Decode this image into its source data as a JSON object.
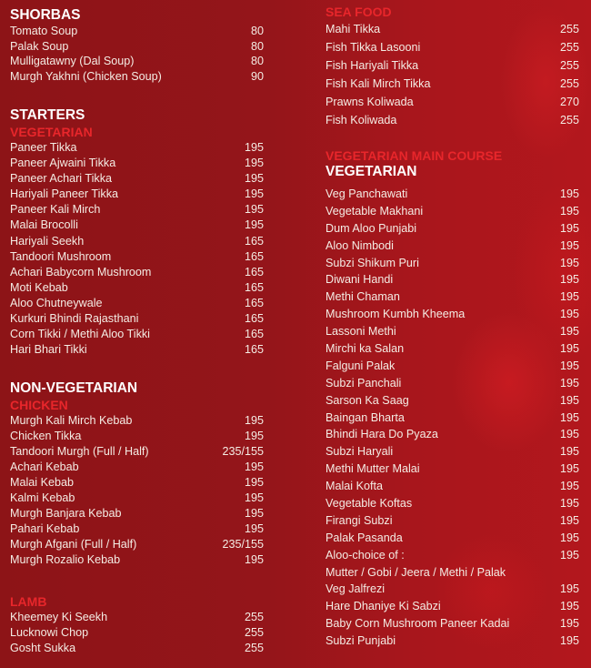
{
  "left": [
    {
      "heading": "SHORBAS",
      "items": [
        {
          "name": "Tomato Soup",
          "price": "80"
        },
        {
          "name": "Palak Soup",
          "price": "80"
        },
        {
          "name": "Mulligatawny (Dal Soup)",
          "price": "80"
        },
        {
          "name": "Murgh Yakhni (Chicken Soup)",
          "price": "90"
        }
      ]
    },
    {
      "heading": "STARTERS",
      "subheading": "VEGETARIAN",
      "items": [
        {
          "name": "Paneer Tikka",
          "price": "195"
        },
        {
          "name": "Paneer Ajwaini Tikka",
          "price": "195"
        },
        {
          "name": "Paneer Achari Tikka",
          "price": "195"
        },
        {
          "name": "Hariyali Paneer Tikka",
          "price": "195"
        },
        {
          "name": "Paneer Kali Mirch",
          "price": "195"
        },
        {
          "name": "Malai Brocolli",
          "price": "195"
        },
        {
          "name": "Hariyali Seekh",
          "price": "165"
        },
        {
          "name": "Tandoori Mushroom",
          "price": "165"
        },
        {
          "name": "Achari Babycorn Mushroom",
          "price": "165"
        },
        {
          "name": "Moti Kebab",
          "price": "165"
        },
        {
          "name": "Aloo Chutneywale",
          "price": "165"
        },
        {
          "name": "Kurkuri Bhindi Rajasthani",
          "price": "165"
        },
        {
          "name": "Corn Tikki / Methi Aloo Tikki",
          "price": "165"
        },
        {
          "name": "Hari Bhari Tikki",
          "price": "165"
        }
      ]
    },
    {
      "heading": "NON-VEGETARIAN",
      "subheading": "CHICKEN",
      "items": [
        {
          "name": "Murgh Kali Mirch Kebab",
          "price": "195"
        },
        {
          "name": "Chicken Tikka",
          "price": "195"
        },
        {
          "name": "Tandoori Murgh (Full / Half)",
          "price": "235/155"
        },
        {
          "name": "Achari Kebab",
          "price": "195"
        },
        {
          "name": "Malai Kebab",
          "price": "195"
        },
        {
          "name": "Kalmi Kebab",
          "price": "195"
        },
        {
          "name": "Murgh Banjara Kebab",
          "price": "195"
        },
        {
          "name": "Pahari Kebab",
          "price": "195"
        },
        {
          "name": "Murgh Afgani (Full / Half)",
          "price": "235/155"
        },
        {
          "name": "Murgh Rozalio Kebab",
          "price": "195"
        }
      ]
    },
    {
      "subheading": "LAMB",
      "items": [
        {
          "name": "Kheemey Ki Seekh",
          "price": "255"
        },
        {
          "name": "Lucknowi Chop",
          "price": "255"
        },
        {
          "name": "Gosht Sukka",
          "price": "255"
        }
      ]
    }
  ],
  "right": [
    {
      "subheading": "SEA FOOD",
      "items": [
        {
          "name": "Mahi Tikka",
          "price": "255"
        },
        {
          "name": "Fish Tikka Lasooni",
          "price": "255"
        },
        {
          "name": "Fish Hariyali Tikka",
          "price": "255"
        },
        {
          "name": "Fish Kali Mirch Tikka",
          "price": "255"
        },
        {
          "name": "Prawns Koliwada",
          "price": "270"
        },
        {
          "name": "Fish Koliwada",
          "price": "255"
        }
      ]
    },
    {
      "subheading": "VEGETARIAN MAIN COURSE",
      "heading": "VEGETARIAN",
      "items": [
        {
          "name": "Veg Panchawati",
          "price": "195"
        },
        {
          "name": "Vegetable Makhani",
          "price": "195"
        },
        {
          "name": "Dum Aloo Punjabi",
          "price": "195"
        },
        {
          "name": "Aloo Nimbodi",
          "price": "195"
        },
        {
          "name": "Subzi Shikum Puri",
          "price": "195"
        },
        {
          "name": "Diwani Handi",
          "price": "195"
        },
        {
          "name": "Methi Chaman",
          "price": "195"
        },
        {
          "name": "Mushroom Kumbh Kheema",
          "price": "195"
        },
        {
          "name": "Lassoni Methi",
          "price": "195"
        },
        {
          "name": "Mirchi ka Salan",
          "price": "195"
        },
        {
          "name": "Falguni Palak",
          "price": "195"
        },
        {
          "name": "Subzi Panchali",
          "price": "195"
        },
        {
          "name": "Sarson Ka Saag",
          "price": "195"
        },
        {
          "name": "Baingan Bharta",
          "price": "195"
        },
        {
          "name": "Bhindi Hara Do Pyaza",
          "price": "195"
        },
        {
          "name": "Subzi Haryali",
          "price": "195"
        },
        {
          "name": "Methi Mutter Malai",
          "price": "195"
        },
        {
          "name": "Malai Kofta",
          "price": "195"
        },
        {
          "name": "Vegetable Koftas",
          "price": "195"
        },
        {
          "name": "Firangi Subzi",
          "price": "195"
        },
        {
          "name": "Palak Pasanda",
          "price": "195"
        },
        {
          "name": "Aloo-choice of :",
          "price": "195"
        },
        {
          "name": "Mutter / Gobi / Jeera / Methi / Palak",
          "price": ""
        },
        {
          "name": "Veg Jalfrezi",
          "price": "195"
        },
        {
          "name": "Hare Dhaniye Ki Sabzi",
          "price": "195"
        },
        {
          "name": "Baby Corn Mushroom Paneer Kadai",
          "price": "195"
        },
        {
          "name": "Subzi Punjabi",
          "price": "195"
        }
      ]
    }
  ],
  "colors": {
    "background": "#8d1417",
    "subheading": "#e8262b",
    "text": "#f4ece4"
  }
}
